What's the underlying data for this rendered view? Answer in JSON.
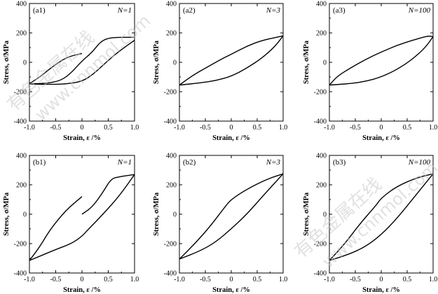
{
  "watermark": [
    "有色金属在线",
    "www.cnnmol.com"
  ],
  "chart_data": [
    {
      "id": "(a1)",
      "annotation": "N=1",
      "type": "line",
      "xlabel": "Strain, ε /%",
      "ylabel": "Stress, σ/MPa",
      "xlim": [
        -1.0,
        1.0
      ],
      "ylim": [
        -400,
        400
      ],
      "xticks": [
        "-1.0",
        "-0.5",
        "0",
        "0.5",
        "1.0"
      ],
      "yticks": [
        "-400",
        "-200",
        "0",
        "200",
        "400"
      ],
      "series": [
        {
          "values": [
            [
              -1.0,
              -145
            ],
            [
              -0.7,
              -145
            ],
            [
              -0.4,
              -125
            ],
            [
              -0.2,
              -70
            ],
            [
              0.0,
              10
            ],
            [
              0.2,
              70
            ],
            [
              0.35,
              140
            ],
            [
              0.5,
              165
            ],
            [
              0.7,
              170
            ],
            [
              1.0,
              170
            ]
          ]
        },
        {
          "values": [
            [
              1.0,
              150
            ],
            [
              0.8,
              100
            ],
            [
              0.6,
              45
            ],
            [
              0.4,
              -20
            ],
            [
              0.2,
              -85
            ],
            [
              0.0,
              -130
            ],
            [
              -0.3,
              -148
            ],
            [
              -0.6,
              -150
            ],
            [
              -1.0,
              -148
            ]
          ]
        },
        {
          "values": [
            [
              0.0,
              60
            ],
            [
              -0.3,
              35
            ],
            [
              -0.6,
              -40
            ],
            [
              -0.8,
              -100
            ],
            [
              -1.0,
              -145
            ]
          ]
        }
      ]
    },
    {
      "id": "(a2)",
      "annotation": "N=3",
      "type": "line",
      "xlabel": "Strain, ε /%",
      "ylabel": "Stress, σ/MPa",
      "xlim": [
        -1.0,
        1.0
      ],
      "ylim": [
        -400,
        400
      ],
      "xticks": [
        "-1.0",
        "-0.5",
        "0",
        "0.5",
        "1.0"
      ],
      "yticks": [
        "-400",
        "-200",
        "0",
        "200",
        "400"
      ],
      "series": [
        {
          "values": [
            [
              -1.0,
              -155
            ],
            [
              -0.75,
              -90
            ],
            [
              -0.5,
              -40
            ],
            [
              -0.2,
              20
            ],
            [
              0.0,
              55
            ],
            [
              0.3,
              110
            ],
            [
              0.6,
              150
            ],
            [
              1.0,
              180
            ]
          ]
        },
        {
          "values": [
            [
              1.0,
              180
            ],
            [
              0.85,
              110
            ],
            [
              0.6,
              30
            ],
            [
              0.3,
              -40
            ],
            [
              0.0,
              -95
            ],
            [
              -0.3,
              -125
            ],
            [
              -0.6,
              -140
            ],
            [
              -1.0,
              -155
            ]
          ]
        }
      ]
    },
    {
      "id": "(a3)",
      "annotation": "N=100",
      "type": "line",
      "xlabel": "Strain, ε /%",
      "ylabel": "Stress, σ/MPa",
      "xlim": [
        -1.0,
        1.0
      ],
      "ylim": [
        -400,
        400
      ],
      "xticks": [
        "-1.0",
        "-0.5",
        "0",
        "0.5",
        "1.0"
      ],
      "yticks": [
        "-400",
        "-200",
        "0",
        "200",
        "400"
      ],
      "series": [
        {
          "values": [
            [
              -1.0,
              -155
            ],
            [
              -0.85,
              -95
            ],
            [
              -0.6,
              -40
            ],
            [
              -0.3,
              20
            ],
            [
              0.0,
              70
            ],
            [
              0.3,
              115
            ],
            [
              0.6,
              150
            ],
            [
              0.9,
              180
            ],
            [
              1.0,
              175
            ]
          ]
        },
        {
          "values": [
            [
              1.0,
              175
            ],
            [
              0.85,
              100
            ],
            [
              0.6,
              20
            ],
            [
              0.3,
              -50
            ],
            [
              0.0,
              -100
            ],
            [
              -0.3,
              -130
            ],
            [
              -0.6,
              -145
            ],
            [
              -1.0,
              -155
            ]
          ]
        }
      ]
    },
    {
      "id": "(b1)",
      "annotation": "N=1",
      "type": "line",
      "xlabel": "Strain, ε /%",
      "ylabel": "Stress, σ/MPa",
      "xlim": [
        -1.0,
        1.0
      ],
      "ylim": [
        -400,
        400
      ],
      "xticks": [
        "-1.0",
        "-0.5",
        "0",
        "0.5",
        "1.0"
      ],
      "yticks": [
        "-400",
        "-200",
        "0",
        "200",
        "400"
      ],
      "series": [
        {
          "values": [
            [
              0.0,
              0
            ],
            [
              0.2,
              50
            ],
            [
              0.4,
              150
            ],
            [
              0.55,
              240
            ],
            [
              0.7,
              255
            ],
            [
              1.0,
              270
            ]
          ]
        },
        {
          "values": [
            [
              1.0,
              270
            ],
            [
              0.7,
              120
            ],
            [
              0.4,
              0
            ],
            [
              0.1,
              -110
            ],
            [
              0.0,
              -150
            ],
            [
              -0.2,
              -200
            ],
            [
              -0.5,
              -240
            ],
            [
              -1.0,
              -315
            ]
          ]
        },
        {
          "values": [
            [
              0.0,
              120
            ],
            [
              -0.3,
              30
            ],
            [
              -0.6,
              -100
            ],
            [
              -0.8,
              -220
            ],
            [
              -1.0,
              -315
            ]
          ]
        }
      ]
    },
    {
      "id": "(b2)",
      "annotation": "N=3",
      "type": "line",
      "xlabel": "Strain, ε /%",
      "ylabel": "Stress, σ/MPa",
      "xlim": [
        -1.0,
        1.0
      ],
      "ylim": [
        -400,
        400
      ],
      "xticks": [
        "-1.0",
        "-0.5",
        "0",
        "0.5",
        "1.0"
      ],
      "yticks": [
        "-400",
        "-200",
        "0",
        "200",
        "400"
      ],
      "series": [
        {
          "values": [
            [
              -1.0,
              -305
            ],
            [
              -0.7,
              -200
            ],
            [
              -0.4,
              -80
            ],
            [
              -0.1,
              60
            ],
            [
              0.0,
              100
            ],
            [
              0.3,
              170
            ],
            [
              0.7,
              240
            ],
            [
              1.0,
              275
            ]
          ]
        },
        {
          "values": [
            [
              1.0,
              275
            ],
            [
              0.6,
              120
            ],
            [
              0.3,
              0
            ],
            [
              0.0,
              -100
            ],
            [
              -0.3,
              -190
            ],
            [
              -0.6,
              -250
            ],
            [
              -1.0,
              -305
            ]
          ]
        }
      ]
    },
    {
      "id": "(b3)",
      "annotation": "N=100",
      "type": "line",
      "xlabel": "Strain, ε /%",
      "ylabel": "Stress, σ/MPa",
      "xlim": [
        -1.0,
        1.0
      ],
      "ylim": [
        -400,
        400
      ],
      "xticks": [
        "-1.0",
        "-0.5",
        "0",
        "0.5",
        "1.0"
      ],
      "yticks": [
        "-400",
        "-200",
        "0",
        "200",
        "400"
      ],
      "series": [
        {
          "values": [
            [
              -1.0,
              -315
            ],
            [
              -0.7,
              -200
            ],
            [
              -0.4,
              -60
            ],
            [
              -0.1,
              60
            ],
            [
              0.0,
              110
            ],
            [
              0.3,
              190
            ],
            [
              0.7,
              250
            ],
            [
              1.0,
              275
            ]
          ]
        },
        {
          "values": [
            [
              1.0,
              275
            ],
            [
              0.6,
              100
            ],
            [
              0.3,
              -30
            ],
            [
              0.0,
              -140
            ],
            [
              -0.3,
              -220
            ],
            [
              -0.6,
              -270
            ],
            [
              -1.0,
              -315
            ]
          ]
        }
      ]
    }
  ]
}
